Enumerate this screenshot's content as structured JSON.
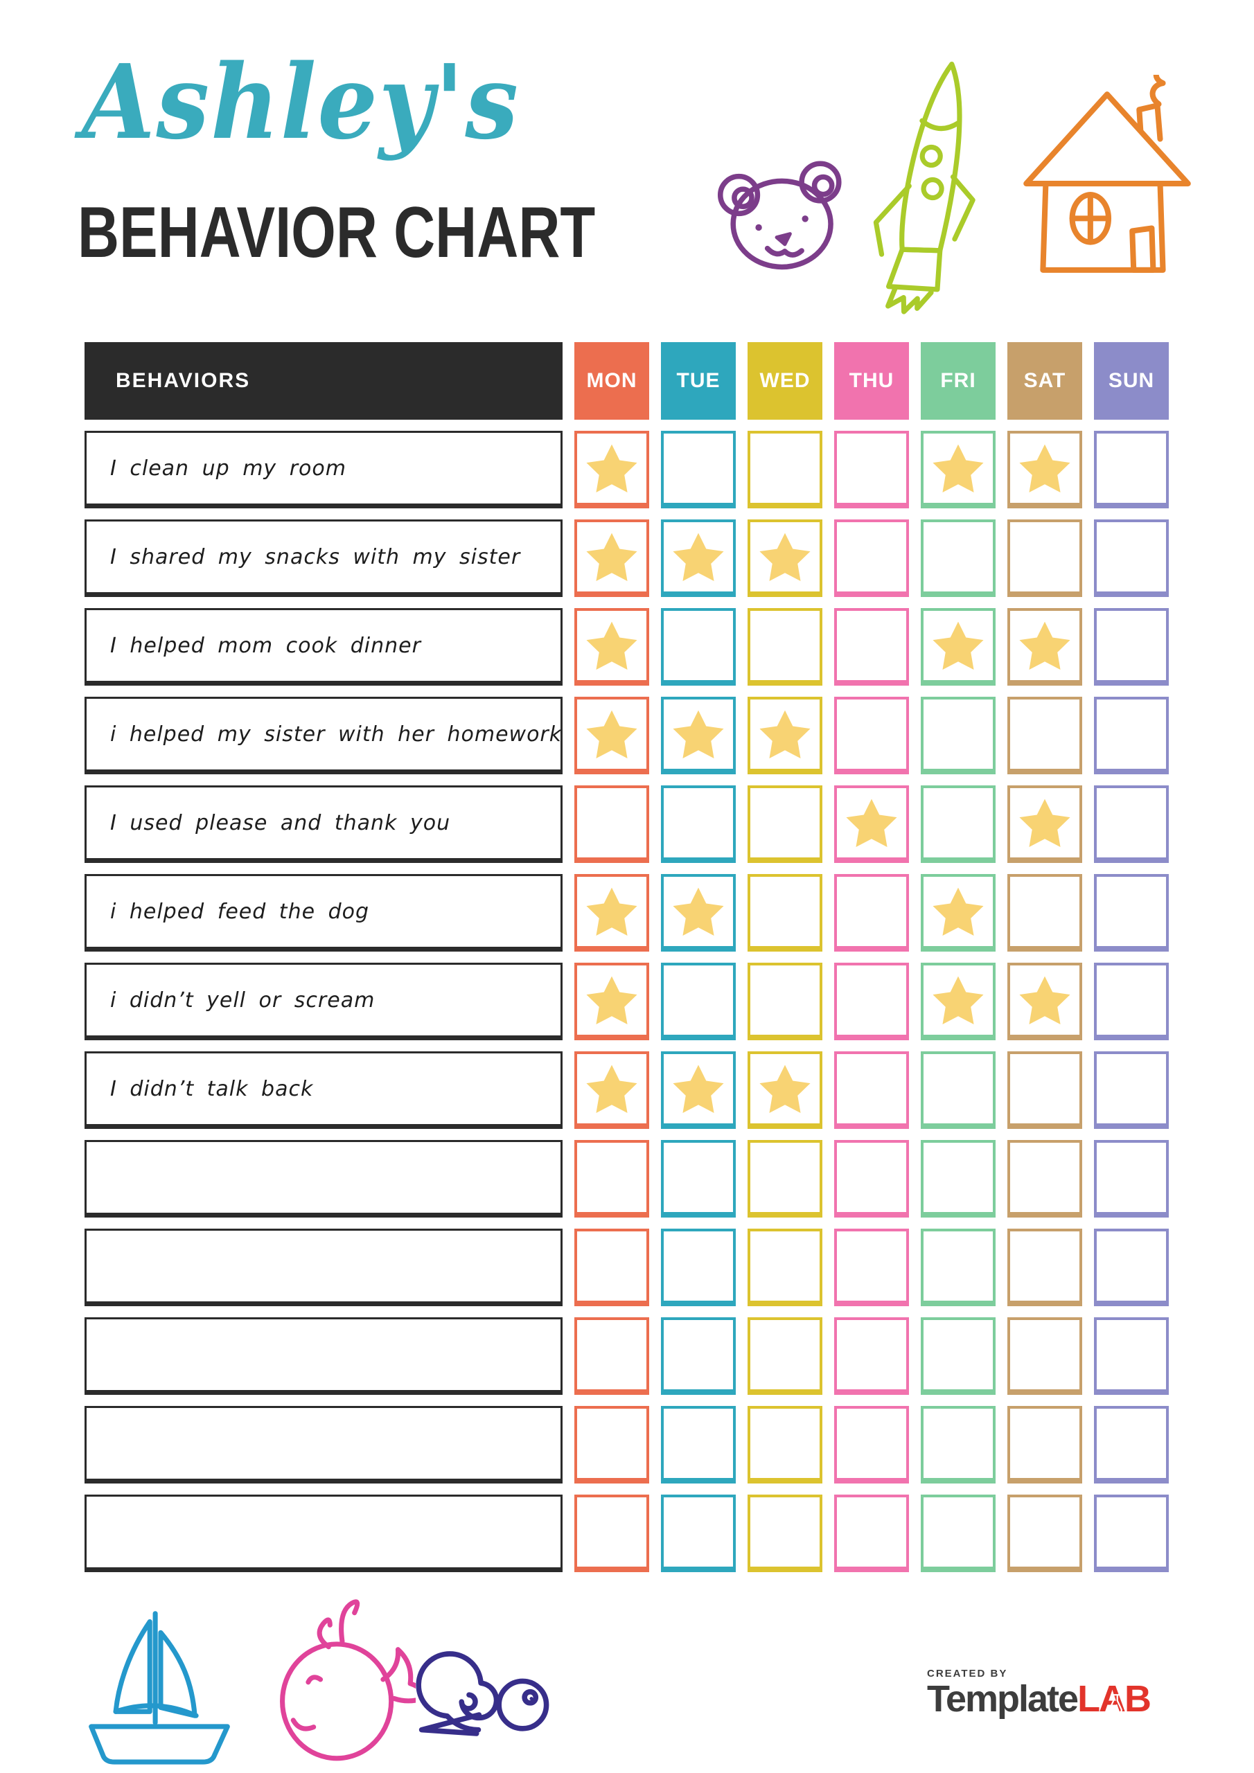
{
  "title": {
    "name": "Ashley's",
    "heading": "BEHAVIOR CHART"
  },
  "colors": {
    "title_script": "#3AABBD",
    "heading_text": "#2B2B2B",
    "table_black": "#2B2B2B",
    "star": "#F8D373",
    "logo_dark": "#3D3D3D",
    "logo_red": "#E2342B"
  },
  "doodles": {
    "bear": "#7C3D8A",
    "rocket": "#AACB2A",
    "house": "#E8842C",
    "sailboat": "#2498CC",
    "whale": "#E0439A",
    "snail": "#372E8A"
  },
  "table": {
    "behaviors_header": "BEHAVIORS",
    "days": [
      {
        "label": "MON",
        "color": "#EC6E4F"
      },
      {
        "label": "TUE",
        "color": "#2EA7BD"
      },
      {
        "label": "WED",
        "color": "#DCC32F"
      },
      {
        "label": "THU",
        "color": "#F173AE"
      },
      {
        "label": "FRI",
        "color": "#7DCD9C"
      },
      {
        "label": "SAT",
        "color": "#C7A06B"
      },
      {
        "label": "SUN",
        "color": "#8C8CC9"
      }
    ],
    "rows": [
      {
        "behavior": "I clean up my room",
        "stars": [
          "MON",
          "FRI",
          "SAT"
        ]
      },
      {
        "behavior": "I shared my snacks with my sister",
        "stars": [
          "MON",
          "TUE",
          "WED"
        ]
      },
      {
        "behavior": "I helped mom cook dinner",
        "stars": [
          "MON",
          "FRI",
          "SAT"
        ]
      },
      {
        "behavior": "i helped my sister with her homework",
        "stars": [
          "MON",
          "TUE",
          "WED"
        ]
      },
      {
        "behavior": "I used please and thank you",
        "stars": [
          "THU",
          "SAT"
        ]
      },
      {
        "behavior": "i helped feed the dog",
        "stars": [
          "MON",
          "TUE",
          "FRI"
        ]
      },
      {
        "behavior": "i didn’t yell or scream",
        "stars": [
          "MON",
          "FRI",
          "SAT"
        ]
      },
      {
        "behavior": "I didn’t talk back",
        "stars": [
          "MON",
          "TUE",
          "WED"
        ]
      },
      {
        "behavior": "",
        "stars": []
      },
      {
        "behavior": "",
        "stars": []
      },
      {
        "behavior": "",
        "stars": []
      },
      {
        "behavior": "",
        "stars": []
      },
      {
        "behavior": "",
        "stars": []
      }
    ]
  },
  "footer": {
    "created_by": "CREATED BY",
    "brand_dark": "Template",
    "brand_red": "LAB"
  }
}
